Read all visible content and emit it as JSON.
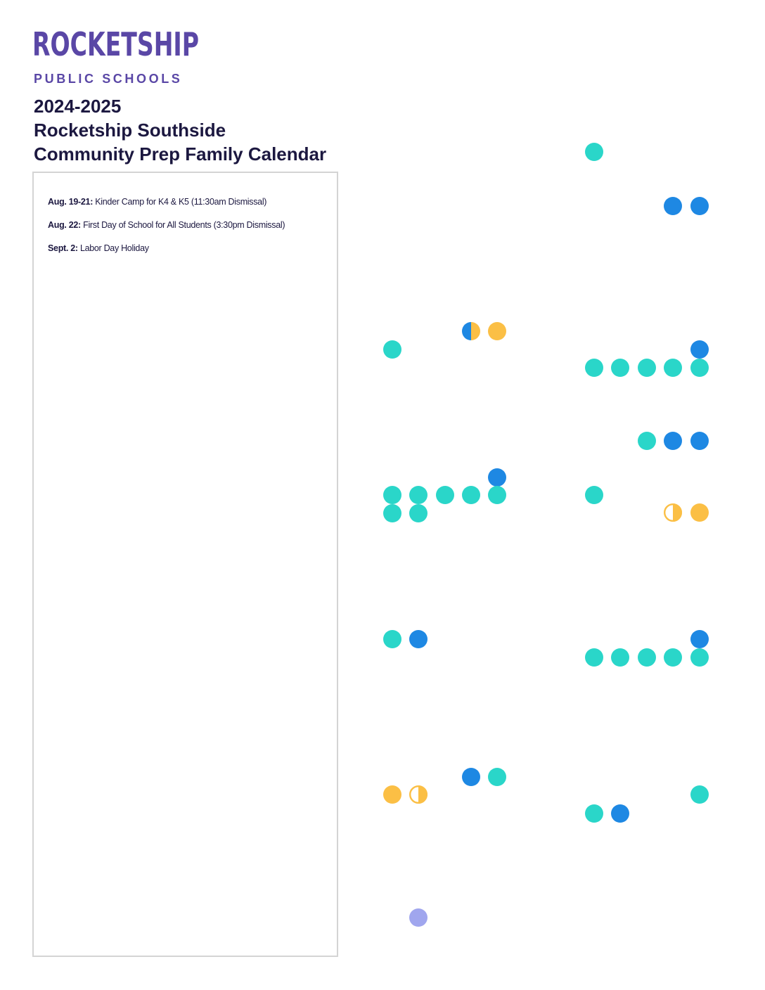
{
  "logo": {
    "name": "ROCKETSHIP",
    "subtitle": "PUBLIC SCHOOLS"
  },
  "header": {
    "title_lines": [
      "2024-2025",
      "Rocketship Southside",
      "Community Prep Family Calendar"
    ]
  },
  "events": [
    {
      "date": "Aug. 19-21:",
      "text": "Kinder Camp for K4 & K5 (11:30am Dismissal)"
    },
    {
      "date": "Aug. 22:",
      "text": "First Day of School for All Students  (3:30pm Dismissal)"
    },
    {
      "date": "Sept. 2:",
      "text": "Labor Day Holiday"
    }
  ]
}
